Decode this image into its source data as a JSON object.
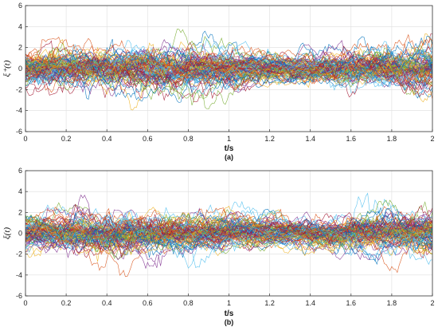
{
  "chart_data": [
    {
      "type": "line",
      "panel": "a",
      "caption": "(a)",
      "xlabel": "t/s",
      "ylabel": "ξ⁺(t)",
      "xlim": [
        0,
        2
      ],
      "ylim": [
        -6,
        6
      ],
      "xticks": [
        0,
        0.2,
        0.4,
        0.6,
        0.8,
        1,
        1.2,
        1.4,
        1.6,
        1.8,
        2
      ],
      "yticks": [
        -6,
        -4,
        -2,
        0,
        2,
        4,
        6
      ],
      "grid": true,
      "series_count": 100,
      "seed": 11,
      "colors": [
        "#0072BD",
        "#D95319",
        "#EDB120",
        "#7E2F8E",
        "#77AC30",
        "#4DBEEE",
        "#A2142F"
      ]
    },
    {
      "type": "line",
      "panel": "b",
      "caption": "(b)",
      "xlabel": "t/s",
      "ylabel": "ξ(t)",
      "xlim": [
        0,
        2
      ],
      "ylim": [
        -6,
        6
      ],
      "xticks": [
        0,
        0.2,
        0.4,
        0.6,
        0.8,
        1,
        1.2,
        1.4,
        1.6,
        1.8,
        2
      ],
      "yticks": [
        -6,
        -4,
        -2,
        0,
        2,
        4,
        6
      ],
      "grid": true,
      "series_count": 100,
      "seed": 29,
      "colors": [
        "#0072BD",
        "#D95319",
        "#EDB120",
        "#7E2F8E",
        "#77AC30",
        "#4DBEEE",
        "#A2142F"
      ]
    }
  ]
}
